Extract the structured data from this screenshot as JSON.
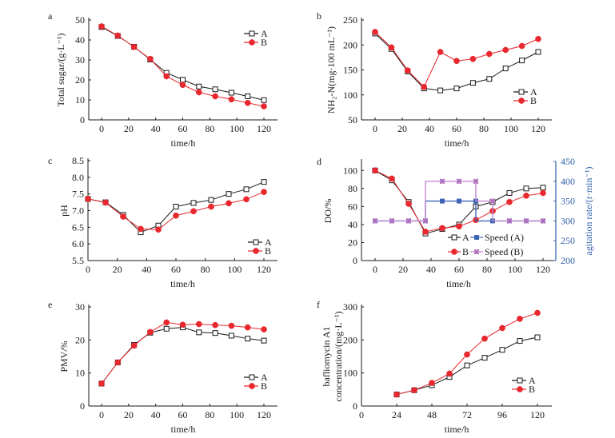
{
  "figure": {
    "colors": {
      "A": "#1a1a1a",
      "B": "#e8282e",
      "speed_A": "#3c64b4",
      "speed_B": "#c488d0",
      "right_axis": "#2f5fa8"
    }
  },
  "chart_data": [
    {
      "id": "a",
      "panel_label": "a",
      "type": "line",
      "title": "",
      "xlabel": "time/h",
      "ylabel": "Total sugar/(g·L⁻¹)",
      "x": [
        0,
        12,
        24,
        36,
        48,
        60,
        72,
        84,
        96,
        108,
        120
      ],
      "xlim": [
        -10,
        130
      ],
      "xticks": [
        0,
        20,
        40,
        60,
        80,
        100,
        120
      ],
      "ylim": [
        0,
        50
      ],
      "yticks": [
        0,
        10,
        20,
        30,
        40,
        50
      ],
      "grid": false,
      "legend": "top-right",
      "series": [
        {
          "name": "A",
          "marker": "open-square",
          "values": [
            46.5,
            42.0,
            36.6,
            30.2,
            23.5,
            20.1,
            16.7,
            15.3,
            13.6,
            11.8,
            9.9
          ]
        },
        {
          "name": "B",
          "marker": "filled-circle",
          "values": [
            46.8,
            42.2,
            36.5,
            30.5,
            21.8,
            17.5,
            13.8,
            11.8,
            10.3,
            8.5,
            6.8
          ]
        }
      ]
    },
    {
      "id": "b",
      "panel_label": "b",
      "type": "line",
      "title": "",
      "xlabel": "time/h",
      "ylabel": "NH₂-N(mg·100 mL⁻¹)",
      "x": [
        0,
        12,
        24,
        36,
        48,
        60,
        72,
        84,
        96,
        108,
        120
      ],
      "xlim": [
        -10,
        130
      ],
      "xticks": [
        0,
        20,
        40,
        60,
        80,
        100,
        120
      ],
      "ylim": [
        50,
        250
      ],
      "yticks": [
        50,
        100,
        150,
        200,
        250
      ],
      "grid": false,
      "legend": "bottom-right",
      "series": [
        {
          "name": "A",
          "marker": "open-square",
          "values": [
            223,
            192,
            147,
            113,
            109,
            113,
            124,
            132,
            153,
            169,
            186
          ]
        },
        {
          "name": "B",
          "marker": "filled-circle",
          "values": [
            226,
            195,
            149,
            116,
            186,
            168,
            172,
            182,
            190,
            198,
            212
          ]
        }
      ]
    },
    {
      "id": "c",
      "panel_label": "c",
      "type": "line",
      "title": "",
      "xlabel": "time/h",
      "ylabel": "pH",
      "x": [
        0,
        12,
        24,
        36,
        48,
        60,
        72,
        84,
        96,
        108,
        120
      ],
      "xlim": [
        0,
        130
      ],
      "xticks": [
        0,
        20,
        40,
        60,
        80,
        100,
        120
      ],
      "ylim": [
        5.5,
        8.5
      ],
      "yticks": [
        5.5,
        6.0,
        6.5,
        7.0,
        7.5,
        8.0,
        8.5
      ],
      "ytick_labels": [
        "5.5",
        "6.0",
        "6.5",
        "7.0",
        "7.5",
        "8.0",
        "8.5"
      ],
      "grid": false,
      "legend": "bottom-right",
      "series": [
        {
          "name": "A",
          "marker": "open-square",
          "values": [
            7.35,
            7.25,
            6.87,
            6.35,
            6.55,
            7.12,
            7.23,
            7.32,
            7.5,
            7.64,
            7.86
          ]
        },
        {
          "name": "B",
          "marker": "filled-circle",
          "values": [
            7.35,
            7.24,
            6.82,
            6.45,
            6.43,
            6.85,
            6.98,
            7.12,
            7.22,
            7.34,
            7.56
          ]
        }
      ]
    },
    {
      "id": "d",
      "panel_label": "d",
      "type": "line",
      "title": "",
      "xlabel": "time/h",
      "ylabel": "DO/%",
      "y2label": "agitation rate/(r·min⁻¹)",
      "x": [
        0,
        12,
        24,
        36,
        48,
        60,
        72,
        84,
        96,
        108,
        120
      ],
      "xlim": [
        -10,
        130
      ],
      "xticks": [
        0,
        20,
        40,
        60,
        80,
        100,
        120
      ],
      "ylim": [
        0,
        110
      ],
      "yticks": [
        0,
        20,
        40,
        60,
        80,
        100
      ],
      "y2lim": [
        200,
        450
      ],
      "y2ticks": [
        200,
        250,
        300,
        350,
        400,
        450
      ],
      "grid": false,
      "legend": "bottom-right",
      "series": [
        {
          "name": "A",
          "axis": "left",
          "marker": "open-square",
          "values": [
            100,
            89,
            65,
            30,
            35,
            40,
            60,
            65,
            75,
            80,
            81
          ]
        },
        {
          "name": "B",
          "axis": "left",
          "marker": "filled-circle",
          "values": [
            100,
            91,
            63,
            32,
            36,
            38,
            45,
            55,
            65,
            72,
            75
          ]
        },
        {
          "name": "Speed (A)",
          "axis": "right",
          "marker": "filled-square",
          "step": true,
          "path": [
            [
              0,
              300
            ],
            [
              36,
              300
            ],
            [
              36,
              350
            ],
            [
              72,
              350
            ],
            [
              72,
              300
            ],
            [
              120,
              300
            ]
          ],
          "points": [
            [
              0,
              300
            ],
            [
              12,
              300
            ],
            [
              24,
              300
            ],
            [
              36,
              300
            ],
            [
              48,
              350
            ],
            [
              60,
              350
            ],
            [
              72,
              350
            ],
            [
              84,
              300
            ],
            [
              96,
              300
            ],
            [
              108,
              300
            ],
            [
              120,
              300
            ]
          ]
        },
        {
          "name": "Speed (B)",
          "axis": "right",
          "marker": "star",
          "step": true,
          "path": [
            [
              0,
              300
            ],
            [
              36,
              300
            ],
            [
              36,
              400
            ],
            [
              72,
              400
            ],
            [
              72,
              350
            ],
            [
              84,
              350
            ],
            [
              84,
              300
            ],
            [
              120,
              300
            ]
          ],
          "points": [
            [
              0,
              300
            ],
            [
              12,
              300
            ],
            [
              24,
              300
            ],
            [
              36,
              300
            ],
            [
              48,
              400
            ],
            [
              60,
              400
            ],
            [
              72,
              400
            ],
            [
              84,
              350
            ],
            [
              96,
              300
            ],
            [
              108,
              300
            ],
            [
              120,
              300
            ]
          ]
        }
      ]
    },
    {
      "id": "e",
      "panel_label": "e",
      "type": "line",
      "title": "",
      "xlabel": "time/h",
      "ylabel": "PMV/%",
      "x": [
        0,
        12,
        24,
        36,
        48,
        60,
        72,
        84,
        96,
        108,
        120
      ],
      "xlim": [
        -10,
        130
      ],
      "xticks": [
        0,
        20,
        40,
        60,
        80,
        100,
        120
      ],
      "ylim": [
        0,
        30
      ],
      "yticks": [
        0,
        10,
        20,
        30
      ],
      "grid": false,
      "legend": "bottom-right",
      "series": [
        {
          "name": "A",
          "marker": "open-square",
          "values": [
            6.8,
            13.2,
            18.5,
            22.2,
            23.4,
            23.8,
            22.3,
            22.1,
            21.3,
            20.4,
            19.8
          ]
        },
        {
          "name": "B",
          "marker": "filled-circle",
          "values": [
            6.8,
            13.2,
            18.3,
            22.4,
            25.3,
            24.6,
            24.8,
            24.5,
            24.3,
            23.8,
            23.2
          ]
        }
      ]
    },
    {
      "id": "f",
      "panel_label": "f",
      "type": "line",
      "title": "",
      "xlabel": "time/h",
      "ylabel": "bafliomycin A1",
      "ylabel2": "concentration/(mg·L⁻¹)",
      "x": [
        24,
        36,
        48,
        60,
        72,
        84,
        96,
        108,
        120
      ],
      "xlim": [
        0,
        130
      ],
      "xticks": [
        0,
        24,
        48,
        72,
        96,
        120
      ],
      "ylim": [
        0,
        300
      ],
      "yticks": [
        0,
        100,
        200,
        300
      ],
      "grid": false,
      "legend": "bottom-right",
      "series": [
        {
          "name": "A",
          "marker": "open-square",
          "values": [
            35,
            48,
            63,
            88,
            123,
            146,
            170,
            197,
            208
          ]
        },
        {
          "name": "B",
          "marker": "filled-circle",
          "values": [
            35,
            48,
            70,
            98,
            156,
            204,
            236,
            264,
            282
          ]
        }
      ]
    }
  ]
}
